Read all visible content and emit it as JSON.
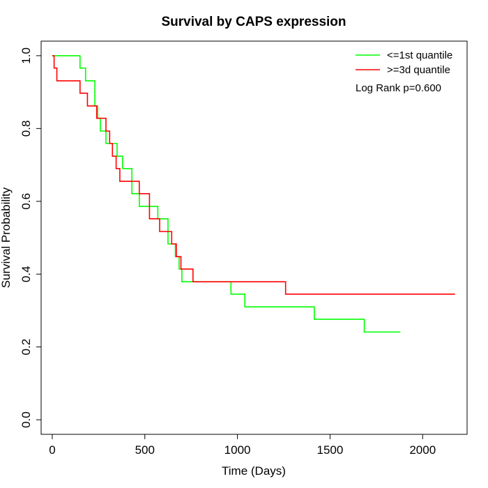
{
  "chart_data": {
    "type": "line",
    "title": "Survival by CAPS expression",
    "xlabel": "Time (Days)",
    "ylabel": "Survival Probability",
    "xlim": [
      -60,
      2240
    ],
    "ylim": [
      -0.04,
      1.04
    ],
    "xticks": [
      0,
      500,
      1000,
      1500,
      2000
    ],
    "yticks": [
      0.0,
      0.2,
      0.4,
      0.6,
      0.8,
      1.0
    ],
    "xtick_labels": [
      "0",
      "500",
      "1000",
      "1500",
      "2000"
    ],
    "ytick_labels": [
      "0.0",
      "0.2",
      "0.4",
      "0.6",
      "0.8",
      "1.0"
    ],
    "grid": false,
    "legend_position": "top-right",
    "annotation": "Log Rank p=0.600",
    "series": [
      {
        "name": "<=1st quantile",
        "color": "#00ff00",
        "step": true,
        "x": [
          0,
          125,
          150,
          180,
          230,
          245,
          260,
          290,
          350,
          380,
          430,
          470,
          535,
          570,
          625,
          665,
          685,
          700,
          965,
          1040,
          1415,
          1685,
          1880
        ],
        "y": [
          1.0,
          1.0,
          0.966,
          0.931,
          0.862,
          0.828,
          0.793,
          0.759,
          0.724,
          0.69,
          0.621,
          0.586,
          0.586,
          0.552,
          0.483,
          0.448,
          0.414,
          0.379,
          0.345,
          0.31,
          0.276,
          0.241,
          0.241
        ]
      },
      {
        "name": ">=3d quantile",
        "color": "#ff0000",
        "step": true,
        "x": [
          0,
          10,
          25,
          150,
          190,
          240,
          290,
          310,
          325,
          345,
          365,
          470,
          525,
          580,
          645,
          670,
          695,
          760,
          1260,
          2175
        ],
        "y": [
          1.0,
          0.966,
          0.931,
          0.897,
          0.862,
          0.828,
          0.793,
          0.759,
          0.724,
          0.69,
          0.655,
          0.621,
          0.552,
          0.517,
          0.483,
          0.448,
          0.414,
          0.379,
          0.345,
          0.345
        ]
      }
    ]
  }
}
